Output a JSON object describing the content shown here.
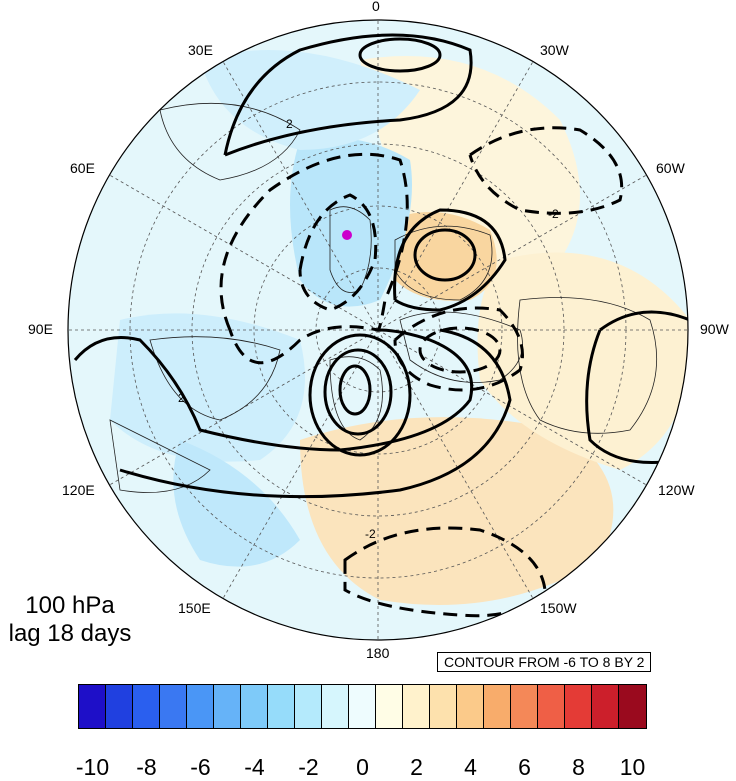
{
  "map": {
    "projection": "north-polar-stereographic",
    "center": "North Pole",
    "lon_labels": [
      {
        "text": "0",
        "name": "lon-0"
      },
      {
        "text": "30W",
        "name": "lon-30w"
      },
      {
        "text": "60W",
        "name": "lon-60w"
      },
      {
        "text": "90W",
        "name": "lon-90w"
      },
      {
        "text": "120W",
        "name": "lon-120w"
      },
      {
        "text": "150W",
        "name": "lon-150w"
      },
      {
        "text": "180",
        "name": "lon-180"
      },
      {
        "text": "150E",
        "name": "lon-150e"
      },
      {
        "text": "120E",
        "name": "lon-120e"
      },
      {
        "text": "90E",
        "name": "lon-90e"
      },
      {
        "text": "60E",
        "name": "lon-60e"
      },
      {
        "text": "30E",
        "name": "lon-30e"
      }
    ],
    "contour_labels": [
      "2",
      "-2"
    ],
    "marker_color": "#cc00cc"
  },
  "caption": {
    "level": "100 hPa",
    "lag": "lag 18 days"
  },
  "contour_info": "CONTOUR FROM -6 TO 8 BY 2",
  "colorbar": {
    "colors": [
      "#1e0fc8",
      "#2040e0",
      "#2a5fef",
      "#3a78f2",
      "#4a96f6",
      "#66b3f8",
      "#7ecaf9",
      "#96dcfa",
      "#b4eafc",
      "#d6f6fd",
      "#eefcfe",
      "#fffde6",
      "#fff2cc",
      "#fde1ad",
      "#fbca8a",
      "#f8ac6b",
      "#f48858",
      "#ef5f46",
      "#e43b36",
      "#cc1f2b",
      "#9a0a1e"
    ],
    "tick_labels": [
      "-10",
      "-8",
      "-6",
      "-4",
      "-2",
      "0",
      "2",
      "4",
      "6",
      "8",
      "10"
    ]
  }
}
